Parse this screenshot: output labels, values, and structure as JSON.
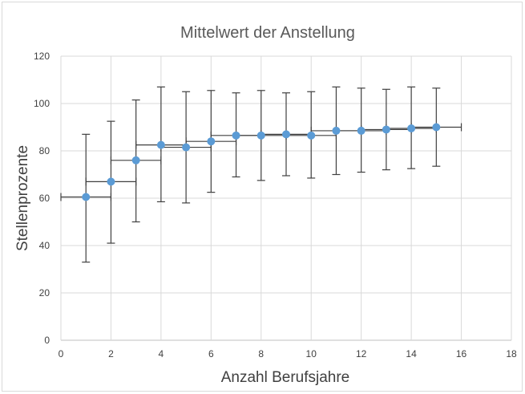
{
  "chart_data": {
    "type": "scatter",
    "title": "Mittelwert der Anstellung",
    "xlabel": "Anzahl Berufsjahre",
    "ylabel": "Stellenprozente",
    "xlim": [
      0,
      18
    ],
    "ylim": [
      0,
      120
    ],
    "xticks": [
      "0",
      "2",
      "4",
      "6",
      "8",
      "10",
      "12",
      "14",
      "16",
      "18"
    ],
    "yticks": [
      "0",
      "20",
      "40",
      "60",
      "80",
      "100",
      "120"
    ],
    "grid": true,
    "legend": "none",
    "marker_color": "#5b9bd5",
    "error_bar_color": "#404040",
    "points": [
      {
        "x": 1,
        "y": 60.5,
        "y_err_low": 33.0,
        "y_err_high": 87.0,
        "x_err_low": 0,
        "x_err_high": 2
      },
      {
        "x": 2,
        "y": 67.0,
        "y_err_low": 41.0,
        "y_err_high": 92.5,
        "x_err_low": 1,
        "x_err_high": 3
      },
      {
        "x": 3,
        "y": 76.0,
        "y_err_low": 50.0,
        "y_err_high": 101.5,
        "x_err_low": 2,
        "x_err_high": 4
      },
      {
        "x": 4,
        "y": 82.5,
        "y_err_low": 58.5,
        "y_err_high": 107.0,
        "x_err_low": 3,
        "x_err_high": 5
      },
      {
        "x": 5,
        "y": 81.5,
        "y_err_low": 58.0,
        "y_err_high": 105.0,
        "x_err_low": 4,
        "x_err_high": 6
      },
      {
        "x": 6,
        "y": 84.0,
        "y_err_low": 62.5,
        "y_err_high": 105.5,
        "x_err_low": 5,
        "x_err_high": 7
      },
      {
        "x": 7,
        "y": 86.5,
        "y_err_low": 69.0,
        "y_err_high": 104.5,
        "x_err_low": 6,
        "x_err_high": 8
      },
      {
        "x": 8,
        "y": 86.5,
        "y_err_low": 67.5,
        "y_err_high": 105.5,
        "x_err_low": 7,
        "x_err_high": 9
      },
      {
        "x": 9,
        "y": 87.0,
        "y_err_low": 69.5,
        "y_err_high": 104.5,
        "x_err_low": 8,
        "x_err_high": 10
      },
      {
        "x": 10,
        "y": 86.5,
        "y_err_low": 68.5,
        "y_err_high": 105.0,
        "x_err_low": 9,
        "x_err_high": 11
      },
      {
        "x": 11,
        "y": 88.5,
        "y_err_low": 70.0,
        "y_err_high": 107.0,
        "x_err_low": 10,
        "x_err_high": 12
      },
      {
        "x": 12,
        "y": 88.5,
        "y_err_low": 71.0,
        "y_err_high": 106.5,
        "x_err_low": 11,
        "x_err_high": 13
      },
      {
        "x": 13,
        "y": 89.0,
        "y_err_low": 72.0,
        "y_err_high": 106.0,
        "x_err_low": 12,
        "x_err_high": 14
      },
      {
        "x": 14,
        "y": 89.5,
        "y_err_low": 72.5,
        "y_err_high": 107.0,
        "x_err_low": 13,
        "x_err_high": 15
      },
      {
        "x": 15,
        "y": 90.0,
        "y_err_low": 73.5,
        "y_err_high": 106.5,
        "x_err_low": 14,
        "x_err_high": 16
      }
    ]
  }
}
